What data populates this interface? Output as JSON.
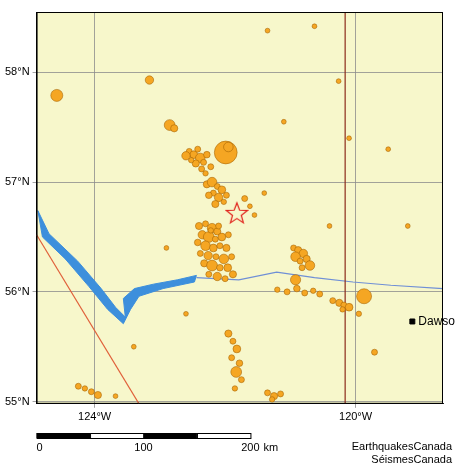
{
  "chart_data": {
    "type": "bubble",
    "xlim": [
      -124.89,
      -118.66
    ],
    "ylim": [
      54.98,
      58.55
    ],
    "xticks": [
      {
        "value": -124,
        "label": "124°W"
      },
      {
        "value": -120,
        "label": "120°W"
      }
    ],
    "yticks": [
      {
        "value": 55,
        "label": "55°N"
      },
      {
        "value": 56,
        "label": "56°N"
      },
      {
        "value": 57,
        "label": "57°N"
      },
      {
        "value": 58,
        "label": "58°N"
      }
    ],
    "grid": true,
    "series": [
      {
        "type": "area",
        "color": "#3d8fdc",
        "line_style": "solid",
        "x": [
          -124.87,
          -124.7,
          -124.26,
          -123.9,
          -123.68,
          -123.53,
          -123.56,
          -123.39,
          -123.1,
          -122.73,
          -122.44,
          -122.47,
          -122.95,
          -123.32,
          -123.45,
          -123.56,
          -123.8,
          -124.09,
          -124.45,
          -124.8,
          -124.87
        ],
        "y": [
          56.74,
          56.53,
          56.28,
          56.03,
          55.86,
          55.77,
          55.94,
          56.03,
          56.07,
          56.11,
          56.15,
          56.09,
          56.03,
          55.96,
          55.84,
          55.71,
          55.84,
          56.05,
          56.3,
          56.5,
          56.74
        ]
      },
      {
        "type": "line",
        "color": "#6f8fd6",
        "line_style": "solid",
        "x": [
          -122.44,
          -121.79,
          -121.21,
          -120.63,
          -120.04,
          -119.46,
          -118.66
        ],
        "y": [
          56.13,
          56.11,
          56.18,
          56.13,
          56.09,
          56.06,
          56.03
        ]
      },
      {
        "type": "line",
        "color": "#8b2a1a",
        "line_style": "solid",
        "x": [
          -120.16,
          -120.16
        ],
        "y": [
          54.98,
          58.55
        ]
      },
      {
        "type": "line",
        "color": "#e0603a",
        "line_style": "solid",
        "x": [
          -124.89,
          -123.32
        ],
        "y": [
          56.52,
          54.98
        ]
      },
      {
        "type": "bubble",
        "color": "#f5a623",
        "marker": "circle",
        "x": [
          -122.55,
          -122.48,
          -122.42,
          -122.38,
          -122.33,
          -122.45,
          -122.52,
          -122.28,
          -122.36,
          -122.6,
          -122.3,
          -122.22,
          -122.85,
          -122.78,
          -121.99,
          -121.95,
          -122.28,
          -122.2,
          -122.12,
          -122.05,
          -122.18,
          -122.25,
          -122.1,
          -121.98,
          -122.02,
          -122.15,
          -121.7,
          -121.62,
          -121.55,
          -122.4,
          -122.3,
          -122.2,
          -122.12,
          -122.35,
          -122.25,
          -122.15,
          -122.05,
          -121.95,
          -122.42,
          -122.3,
          -122.18,
          -122.08,
          -121.98,
          -122.38,
          -122.26,
          -122.14,
          -122.02,
          -121.9,
          -122.32,
          -122.2,
          -122.08,
          -121.96,
          -122.25,
          -122.12,
          -122.0,
          -121.88,
          -122.22,
          -122.1,
          -120.95,
          -120.88,
          -120.8,
          -120.92,
          -120.85,
          -120.75,
          -120.7,
          -120.82,
          -120.92,
          -121.2,
          -121.05,
          -120.9,
          -120.78,
          -120.65,
          -120.55,
          -120.35,
          -120.25,
          -120.18,
          -120.1,
          -120.2,
          -119.87,
          -119.95,
          -119.71,
          -121.95,
          -121.88,
          -121.82,
          -121.9,
          -121.78,
          -121.83,
          -121.75,
          -121.85,
          -124.25,
          -124.15,
          -124.05,
          -123.95,
          -123.68,
          -121.35,
          -121.25,
          -121.15,
          -121.28,
          -124.58,
          -123.16,
          -121.35,
          -120.63,
          -120.26,
          -121.1,
          -119.5,
          -119.2,
          -122.9,
          -123.4,
          -122.6,
          -120.1,
          -121.4,
          -120.4
        ],
        "y": [
          57.28,
          57.25,
          57.3,
          57.22,
          57.18,
          57.17,
          57.2,
          57.25,
          57.12,
          57.24,
          57.08,
          57.14,
          57.52,
          57.49,
          57.27,
          57.32,
          56.98,
          57.0,
          56.96,
          56.93,
          56.9,
          56.88,
          56.86,
          56.88,
          56.82,
          56.8,
          56.85,
          56.78,
          56.7,
          56.6,
          56.62,
          56.58,
          56.55,
          56.52,
          56.5,
          56.48,
          56.5,
          56.52,
          56.45,
          56.42,
          56.4,
          56.42,
          56.4,
          56.35,
          56.33,
          56.32,
          56.3,
          56.32,
          56.26,
          56.24,
          56.22,
          56.22,
          56.16,
          56.14,
          56.12,
          56.16,
          56.56,
          56.6,
          56.4,
          56.38,
          56.35,
          56.32,
          56.28,
          56.3,
          56.24,
          56.22,
          56.11,
          56.02,
          56.0,
          56.03,
          55.99,
          56.01,
          55.98,
          55.92,
          55.9,
          55.88,
          55.86,
          55.84,
          55.96,
          55.8,
          55.45,
          55.62,
          55.55,
          55.48,
          55.4,
          55.35,
          55.27,
          55.2,
          55.12,
          55.14,
          55.12,
          55.09,
          55.06,
          55.05,
          55.08,
          55.05,
          55.07,
          55.02,
          57.79,
          57.93,
          58.38,
          58.42,
          57.92,
          57.55,
          57.3,
          56.6,
          56.4,
          55.5,
          55.8,
          57.4,
          56.9,
          56.6
        ],
        "sizes": [
          2.0,
          2.3,
          2.0,
          2.6,
          2.0,
          2.2,
          1.9,
          2.1,
          2.0,
          2.4,
          1.9,
          2.0,
          2.8,
          2.2,
          4.8,
          2.6,
          2.2,
          2.6,
          2.0,
          2.3,
          2.0,
          2.1,
          2.4,
          2.0,
          1.9,
          2.2,
          2.0,
          1.8,
          1.8,
          2.2,
          2.0,
          2.6,
          2.2,
          2.4,
          2.8,
          2.0,
          2.3,
          2.0,
          2.1,
          2.6,
          2.3,
          2.0,
          2.2,
          2.0,
          2.4,
          2.0,
          2.6,
          2.0,
          2.2,
          2.8,
          2.1,
          2.3,
          2.0,
          2.4,
          2.0,
          2.2,
          1.9,
          2.0,
          2.0,
          2.2,
          2.4,
          2.6,
          2.0,
          2.2,
          2.6,
          2.0,
          2.7,
          1.9,
          2.0,
          2.1,
          2.0,
          1.9,
          2.0,
          2.0,
          2.2,
          2.0,
          2.3,
          1.9,
          3.5,
          1.9,
          2.0,
          2.2,
          2.0,
          2.3,
          2.0,
          2.1,
          2.8,
          2.0,
          1.9,
          2.0,
          1.9,
          2.0,
          2.2,
          1.8,
          2.0,
          2.2,
          2.0,
          1.9,
          3.0,
          2.4,
          1.8,
          1.8,
          1.8,
          1.8,
          1.8,
          1.8,
          1.8,
          1.8,
          1.8,
          1.8,
          1.8,
          1.8
        ]
      },
      {
        "type": "scatter",
        "marker": "star",
        "color": "#e0201a",
        "x": [
          -121.82
        ],
        "y": [
          56.72
        ]
      },
      {
        "type": "scatter",
        "marker": "square",
        "color": "#000000",
        "label": "Dawson Creek",
        "x": [
          -119.13
        ],
        "y": [
          55.73
        ]
      }
    ],
    "scale_bar": {
      "ticks": [
        0,
        100,
        200
      ],
      "unit": "km"
    },
    "credit": [
      "EarthquakesCanada",
      "SéismesCanada"
    ]
  }
}
